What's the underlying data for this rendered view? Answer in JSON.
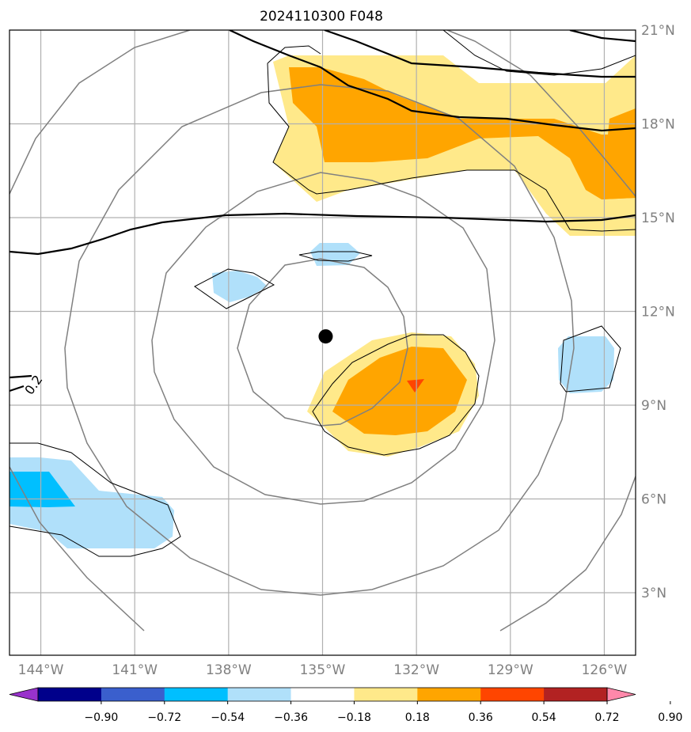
{
  "title": "2024110300 F048",
  "map": {
    "lon_range": [
      -145,
      -125
    ],
    "lat_range": [
      1,
      21
    ],
    "lon_ticks": [
      {
        "value": -144,
        "label": "144°W"
      },
      {
        "value": -141,
        "label": "141°W"
      },
      {
        "value": -138,
        "label": "138°W"
      },
      {
        "value": -135,
        "label": "135°W"
      },
      {
        "value": -132,
        "label": "132°W"
      },
      {
        "value": -129,
        "label": "129°W"
      },
      {
        "value": -126,
        "label": "126°W"
      }
    ],
    "lat_ticks": [
      {
        "value": 3,
        "label": "3°N"
      },
      {
        "value": 6,
        "label": "6°N"
      },
      {
        "value": 9,
        "label": "9°N"
      },
      {
        "value": 12,
        "label": "12°N"
      },
      {
        "value": 15,
        "label": "15°N"
      },
      {
        "value": 18,
        "label": "18°N"
      },
      {
        "value": 21,
        "label": "21°N"
      }
    ],
    "grid": true,
    "storm_center": {
      "lon": -134.9,
      "lat": 11.2
    },
    "range_rings_deg": [
      3,
      5.5,
      8,
      10.5
    ],
    "contour_label": "0.2",
    "colors": {
      "ring": "#808080",
      "grid": "#b0b0b0",
      "contour": "#000000",
      "center": "#000000"
    }
  },
  "colorbar": {
    "levels": [
      "−0.90",
      "−0.72",
      "−0.54",
      "−0.36",
      "−0.18",
      "0.18",
      "0.36",
      "0.54",
      "0.72",
      "0.90"
    ],
    "colors": [
      "#9932cc",
      "#00008b",
      "#3a5fcd",
      "#00bfff",
      "#b0e0fa",
      "#ffffff",
      "#ffe98a",
      "#ffa500",
      "#ff4500",
      "#b22222",
      "#ff88aa"
    ]
  }
}
